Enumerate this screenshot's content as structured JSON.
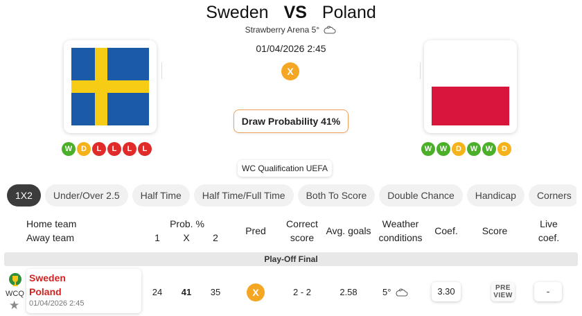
{
  "match": {
    "home_team": "Sweden",
    "vs_label": "VS",
    "away_team": "Poland",
    "venue": "Strawberry Arena 5°",
    "datetime": "01/04/2026 2:45",
    "prediction": "X",
    "draw_probability": "Draw Probability 41%",
    "competition": "WC Qualification UEFA"
  },
  "form": {
    "home": [
      "W",
      "D",
      "L",
      "L",
      "L",
      "L"
    ],
    "away": [
      "W",
      "W",
      "D",
      "W",
      "W",
      "D"
    ]
  },
  "icons": {
    "venue_weather": "partly-cloudy-icon",
    "trophy": "trophy-icon",
    "favorite": "star-icon"
  },
  "tabs": [
    "1X2",
    "Under/Over 2.5",
    "Half Time",
    "Half Time/Full Time",
    "Both To Score",
    "Double Chance",
    "Handicap",
    "Corners"
  ],
  "table": {
    "headers": {
      "home_team": "Home team",
      "away_team": "Away team",
      "prob": "Prob. %",
      "p1": "1",
      "px": "X",
      "p2": "2",
      "pred": "Pred",
      "correct_1": "Correct",
      "correct_2": "score",
      "avg_goals": "Avg. goals",
      "weather_1": "Weather",
      "weather_2": "conditions",
      "coef": "Coef.",
      "score": "Score",
      "live_1": "Live",
      "live_2": "coef."
    },
    "section": "Play-Off Final",
    "row": {
      "competition_code": "WCQ",
      "home": "Sweden",
      "away": "Poland",
      "date": "01/04/2026 2:45",
      "prob_1": "24",
      "prob_x": "41",
      "prob_2": "35",
      "pred": "X",
      "correct_score": "2 - 2",
      "avg_goals": "2.58",
      "weather": "5°",
      "coef": "3.30",
      "preview_1": "PRE",
      "preview_2": "VIEW",
      "live_coef": "-"
    }
  },
  "colors": {
    "win": "#4caf2a",
    "draw": "#f5b21b",
    "loss": "#e12b2b",
    "prediction": "#f5a623",
    "team_link": "#d32222",
    "sweden_blue": "#1b5aa6",
    "sweden_yellow": "#f7cc14",
    "poland_red": "#d8163c"
  }
}
